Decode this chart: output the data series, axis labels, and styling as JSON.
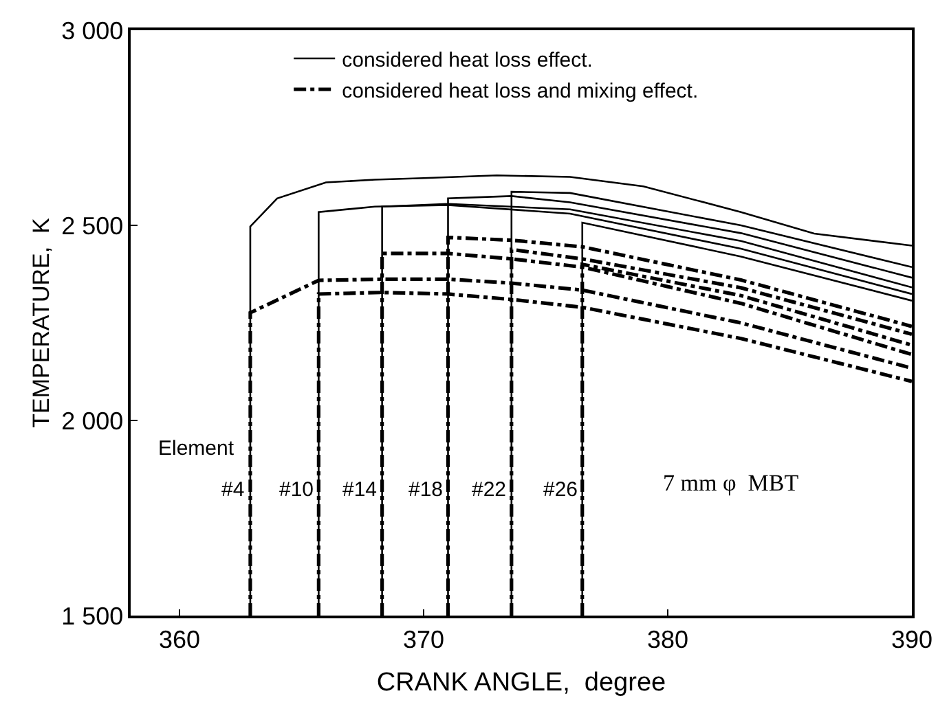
{
  "chart_data": {
    "type": "line",
    "xlabel": "CRANK ANGLE,  degree",
    "ylabel": "TEMPERATURE,  K",
    "xlim": [
      358,
      390
    ],
    "ylim": [
      1500,
      3000
    ],
    "xticks": [
      360,
      370,
      380,
      390
    ],
    "yticks": [
      {
        "value": 1500,
        "label": "1 500"
      },
      {
        "value": 2000,
        "label": "2 000"
      },
      {
        "value": 2500,
        "label": "2 500"
      },
      {
        "value": 3000,
        "label": "3 000"
      }
    ],
    "legend": "top",
    "marker": "none",
    "series": [
      {
        "name": "considered heat loss effect.",
        "color": "#000000",
        "line_style": "solid",
        "x": [
          362.9,
          362.9,
          364,
          366,
          368,
          370,
          373,
          376,
          379,
          383,
          386,
          390
        ],
        "values": [
          1500,
          2497,
          2569,
          2610,
          2617,
          2621,
          2628,
          2624,
          2600,
          2534,
          2479,
          2448
        ]
      },
      {
        "color": "#000000",
        "line_style": "solid",
        "x": [
          365.7,
          365.7,
          368,
          371,
          376,
          383,
          390
        ],
        "values": [
          1500,
          2534,
          2548,
          2552,
          2530,
          2440,
          2324
        ]
      },
      {
        "color": "#000000",
        "line_style": "solid",
        "x": [
          368.3,
          368.3,
          371,
          376,
          383,
          390
        ],
        "values": [
          1500,
          2548,
          2555,
          2541,
          2460,
          2341
        ]
      },
      {
        "color": "#000000",
        "line_style": "solid",
        "x": [
          371.0,
          371.0,
          373.6,
          376,
          383,
          390
        ],
        "values": [
          1500,
          2569,
          2575,
          2559,
          2480,
          2366
        ]
      },
      {
        "color": "#000000",
        "line_style": "solid",
        "x": [
          373.6,
          373.6,
          376,
          383,
          390
        ],
        "values": [
          1500,
          2586,
          2583,
          2500,
          2393
        ]
      },
      {
        "color": "#000000",
        "line_style": "solid",
        "x": [
          376.5,
          376.5,
          383,
          390
        ],
        "values": [
          1500,
          2507,
          2420,
          2307
        ]
      },
      {
        "name": "considered heat loss and mixing effect.",
        "color": "#000000",
        "line_style": "dashdot",
        "x": [
          362.9,
          362.9,
          365.7,
          368.3,
          371,
          373.6,
          376.5,
          383,
          390
        ],
        "values": [
          1500,
          2276,
          2359,
          2362,
          2362,
          2352,
          2334,
          2250,
          2134
        ]
      },
      {
        "color": "#000000",
        "line_style": "dashdot",
        "x": [
          365.7,
          365.7,
          368.3,
          371,
          373.6,
          376.5,
          383,
          390
        ],
        "values": [
          1500,
          2324,
          2328,
          2324,
          2310,
          2290,
          2210,
          2100
        ]
      },
      {
        "color": "#000000",
        "line_style": "dashdot",
        "x": [
          368.3,
          368.3,
          371,
          373.6,
          376.5,
          383,
          390
        ],
        "values": [
          1500,
          2428,
          2428,
          2414,
          2393,
          2300,
          2169
        ]
      },
      {
        "color": "#000000",
        "line_style": "dashdot",
        "x": [
          371.0,
          371.0,
          373.6,
          376.5,
          383,
          390
        ],
        "values": [
          1500,
          2469,
          2462,
          2445,
          2360,
          2241
        ]
      },
      {
        "color": "#000000",
        "line_style": "dashdot",
        "x": [
          373.6,
          373.6,
          376.5,
          383,
          390
        ],
        "values": [
          1500,
          2438,
          2414,
          2340,
          2221
        ]
      },
      {
        "color": "#000000",
        "line_style": "dashdot",
        "x": [
          376.5,
          376.5,
          383,
          390
        ],
        "values": [
          1500,
          2400,
          2320,
          2193
        ]
      }
    ],
    "annotations": [
      "Element",
      "#4",
      "#10",
      "#14",
      "#18",
      "#22",
      "#26",
      "7 mm φ  MBT"
    ]
  }
}
